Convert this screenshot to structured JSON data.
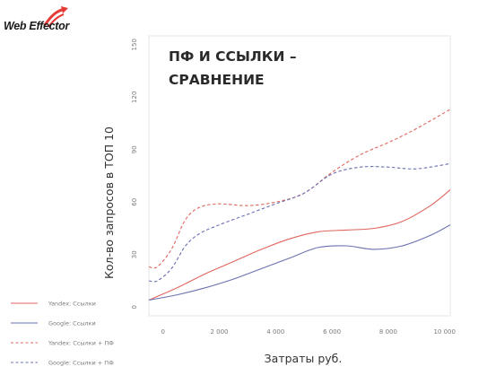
{
  "logo": {
    "text": "Web Effector",
    "brand_color": "#e53935"
  },
  "chart_data": {
    "type": "line",
    "title": [
      "ПФ И ССЫЛКИ –",
      "СРАВНЕНИЕ"
    ],
    "xlabel": "Затраты руб.",
    "ylabel": "Кол-во запросов в ТОП 10",
    "xlim": [
      -500,
      10200
    ],
    "ylim": [
      -5,
      155
    ],
    "xticks": [
      0,
      2000,
      4000,
      6000,
      8000,
      10000
    ],
    "xtick_labels": [
      "0",
      "2 000",
      "4 000",
      "6 000",
      "8 000",
      "10 000"
    ],
    "yticks": [
      0,
      30,
      60,
      90,
      120,
      150
    ],
    "ytick_labels": [
      "0",
      "30",
      "60",
      "90",
      "120",
      "150"
    ],
    "grid": false,
    "legend_position": "bottom-left",
    "series": [
      {
        "name": "Yandex: Ссылки",
        "color": "#e0665e",
        "dash": "solid",
        "x": [
          -500,
          500,
          1500,
          2500,
          3500,
          4500,
          5500,
          6500,
          7500,
          8500,
          9500,
          10200
        ],
        "y": [
          4,
          11,
          19,
          26,
          33,
          39,
          43,
          44,
          45,
          49,
          58,
          67
        ]
      },
      {
        "name": "Google: Ссылки",
        "color": "#6a70b0",
        "dash": "solid",
        "x": [
          -500,
          500,
          1500,
          2500,
          3500,
          4500,
          5500,
          6500,
          7500,
          8500,
          9500,
          10200
        ],
        "y": [
          4,
          7,
          11,
          16,
          22,
          28,
          34,
          35,
          33,
          35,
          41,
          47
        ]
      },
      {
        "name": "Yandex: Ссылки + ПФ",
        "color": "#e0665e",
        "dash": "dashed",
        "x": [
          -500,
          -200,
          300,
          800,
          1300,
          2000,
          3000,
          4000,
          5000,
          6000,
          7000,
          8000,
          9000,
          10200
        ],
        "y": [
          23,
          23,
          33,
          50,
          57,
          59,
          58,
          60,
          65,
          77,
          87,
          94,
          102,
          113
        ]
      },
      {
        "name": "Google: Ссылки + ПФ",
        "color": "#6a70b0",
        "dash": "dashed",
        "x": [
          -500,
          -200,
          300,
          800,
          1300,
          2000,
          3000,
          4000,
          5000,
          6000,
          7000,
          8000,
          9000,
          10200
        ],
        "y": [
          15,
          15,
          22,
          35,
          42,
          47,
          53,
          59,
          65,
          76,
          80,
          80,
          79,
          82
        ]
      }
    ]
  }
}
